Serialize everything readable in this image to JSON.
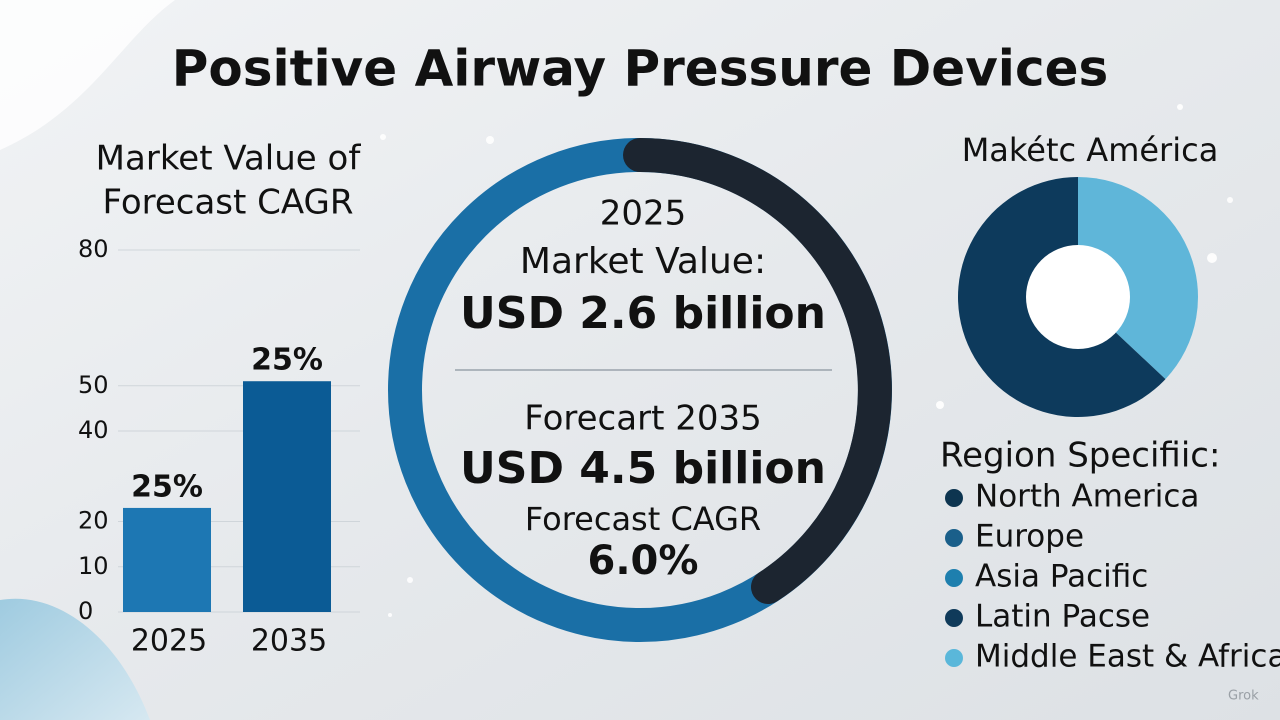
{
  "title": "Positive Airway Pressure Devices",
  "chart_data": [
    {
      "type": "bar",
      "title": "Market Value of",
      "subtitle": "Forecast CAGR",
      "categories": [
        "2025",
        "2035"
      ],
      "values": [
        23,
        51
      ],
      "bar_annotations": [
        "25%",
        "25%"
      ],
      "colors": [
        "#1d77b3",
        "#0b5b95"
      ],
      "ylim": [
        0,
        80
      ],
      "yticks": [
        0,
        10,
        20,
        40,
        50,
        80
      ],
      "grid": true
    },
    {
      "type": "pie",
      "title": "Makétc América",
      "values": [
        37,
        63
      ],
      "colors": [
        "#5fb6d9",
        "#0d3a5c"
      ]
    }
  ],
  "center": {
    "lines": [
      "2025",
      "Market Value:",
      "USD 2.6 billion",
      "Forecart 2035",
      "USD 4.5 billion",
      "Forecast CAGR",
      "6.0%"
    ]
  },
  "legend": {
    "title": "Region Specifiic:",
    "items": [
      {
        "label": "North America",
        "color": "#0d3550"
      },
      {
        "label": "Europe",
        "color": "#1a5f8a"
      },
      {
        "label": "Asia Pacific",
        "color": "#1e7fae"
      },
      {
        "label": "Latin Pacse",
        "color": "#0f3a5a"
      },
      {
        "label": "Middle East & Africa",
        "color": "#5ab7da"
      }
    ]
  },
  "watermark": "Grok"
}
